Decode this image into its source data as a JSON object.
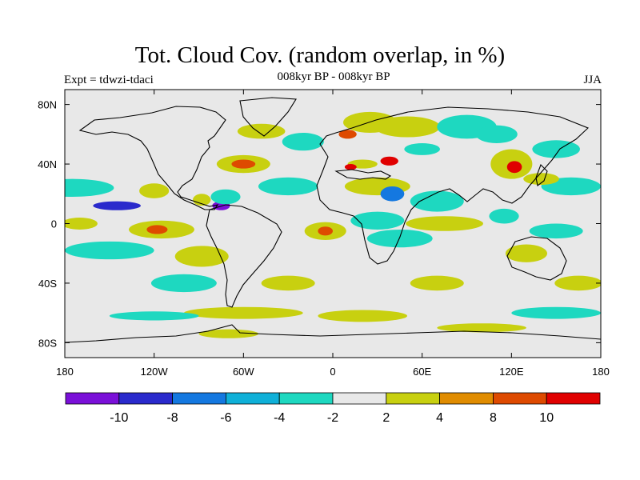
{
  "title": "Tot. Cloud Cov. (random overlap, in %)",
  "experiment_label": "Expt = tdwzi-tdaci",
  "subtitle": "008kyr BP - 008kyr BP",
  "season": "JJA",
  "colors": {
    "background": "#e8e8e8",
    "coastline": "#000000",
    "frame": "#000000"
  },
  "chart_data": {
    "type": "heatmap",
    "map": "global cloud cover anomaly, equirectangular projection",
    "x_axis": {
      "ticks": [
        "180",
        "120W",
        "60W",
        "0",
        "60E",
        "120E",
        "180"
      ],
      "values": [
        -180,
        -120,
        -60,
        0,
        60,
        120,
        180
      ]
    },
    "y_axis": {
      "ticks": [
        "80N",
        "40N",
        "0",
        "40S",
        "80S"
      ],
      "values": [
        80,
        40,
        0,
        -40,
        -80
      ],
      "range": [
        -90,
        90
      ]
    },
    "colorbar": {
      "labels": [
        "-10",
        "-8",
        "-6",
        "-4",
        "-2",
        "2",
        "4",
        "8",
        "10"
      ],
      "colors": [
        "#7a10d8",
        "#2a2acc",
        "#1478e0",
        "#0fb0d8",
        "#1ed8c0",
        "#e8e8e8",
        "#c8d010",
        "#e08c00",
        "#de4a00",
        "#e00000"
      ]
    },
    "features": [
      {
        "lon": -175,
        "lat": 24,
        "rlon": 28,
        "rlat": 6,
        "level": -4
      },
      {
        "lon": -145,
        "lat": 12,
        "rlon": 16,
        "rlat": 3,
        "level": -8
      },
      {
        "lon": -120,
        "lat": 22,
        "rlon": 10,
        "rlat": 5,
        "level": 4
      },
      {
        "lon": -115,
        "lat": -4,
        "rlon": 22,
        "rlat": 6,
        "level": 4
      },
      {
        "lon": -118,
        "lat": -4,
        "rlon": 7,
        "rlat": 3,
        "level": 8
      },
      {
        "lon": -170,
        "lat": 0,
        "rlon": 12,
        "rlat": 4,
        "level": 4
      },
      {
        "lon": -150,
        "lat": -18,
        "rlon": 30,
        "rlat": 6,
        "level": -4
      },
      {
        "lon": -88,
        "lat": -22,
        "rlon": 18,
        "rlat": 7,
        "level": 4
      },
      {
        "lon": -100,
        "lat": -40,
        "rlon": 22,
        "rlat": 6,
        "level": -4
      },
      {
        "lon": -60,
        "lat": -60,
        "rlon": 40,
        "rlat": 4,
        "level": 4
      },
      {
        "lon": -30,
        "lat": -40,
        "rlon": 18,
        "rlat": 5,
        "level": 4
      },
      {
        "lon": -60,
        "lat": 40,
        "rlon": 18,
        "rlat": 6,
        "level": 4
      },
      {
        "lon": -60,
        "lat": 40,
        "rlon": 8,
        "rlat": 3,
        "level": 8
      },
      {
        "lon": -48,
        "lat": 62,
        "rlon": 16,
        "rlat": 5,
        "level": 4
      },
      {
        "lon": -30,
        "lat": 25,
        "rlon": 20,
        "rlat": 6,
        "level": -4
      },
      {
        "lon": -75,
        "lat": 12,
        "rlon": 6,
        "rlat": 3,
        "level": -10
      },
      {
        "lon": -72,
        "lat": 18,
        "rlon": 10,
        "rlat": 5,
        "level": -4
      },
      {
        "lon": -88,
        "lat": 16,
        "rlon": 6,
        "rlat": 4,
        "level": 4
      },
      {
        "lon": -20,
        "lat": 55,
        "rlon": 14,
        "rlat": 6,
        "level": -4
      },
      {
        "lon": 25,
        "lat": 68,
        "rlon": 18,
        "rlat": 7,
        "level": 4
      },
      {
        "lon": 10,
        "lat": 60,
        "rlon": 6,
        "rlat": 3,
        "level": 8
      },
      {
        "lon": 20,
        "lat": 40,
        "rlon": 10,
        "rlat": 3,
        "level": 4
      },
      {
        "lon": 12,
        "lat": 38,
        "rlon": 4,
        "rlat": 2,
        "level": 10
      },
      {
        "lon": 38,
        "lat": 42,
        "rlon": 6,
        "rlat": 3,
        "level": 10
      },
      {
        "lon": 50,
        "lat": 65,
        "rlon": 22,
        "rlat": 7,
        "level": 4
      },
      {
        "lon": 90,
        "lat": 65,
        "rlon": 20,
        "rlat": 8,
        "level": -4
      },
      {
        "lon": 60,
        "lat": 50,
        "rlon": 12,
        "rlat": 4,
        "level": -4
      },
      {
        "lon": 30,
        "lat": 25,
        "rlon": 22,
        "rlat": 6,
        "level": 4
      },
      {
        "lon": 40,
        "lat": 20,
        "rlon": 8,
        "rlat": 5,
        "level": -6
      },
      {
        "lon": 30,
        "lat": 2,
        "rlon": 18,
        "rlat": 6,
        "level": -4
      },
      {
        "lon": 45,
        "lat": -10,
        "rlon": 22,
        "rlat": 6,
        "level": -4
      },
      {
        "lon": -5,
        "lat": -5,
        "rlon": 14,
        "rlat": 6,
        "level": 4
      },
      {
        "lon": -5,
        "lat": -5,
        "rlon": 5,
        "rlat": 3,
        "level": 8
      },
      {
        "lon": 70,
        "lat": 15,
        "rlon": 18,
        "rlat": 7,
        "level": -4
      },
      {
        "lon": 75,
        "lat": 0,
        "rlon": 26,
        "rlat": 5,
        "level": 4
      },
      {
        "lon": 70,
        "lat": -40,
        "rlon": 18,
        "rlat": 5,
        "level": 4
      },
      {
        "lon": 120,
        "lat": 40,
        "rlon": 14,
        "rlat": 10,
        "level": 4
      },
      {
        "lon": 122,
        "lat": 38,
        "rlon": 5,
        "rlat": 4,
        "level": 10
      },
      {
        "lon": 110,
        "lat": 60,
        "rlon": 14,
        "rlat": 6,
        "level": -4
      },
      {
        "lon": 150,
        "lat": 50,
        "rlon": 16,
        "rlat": 6,
        "level": -4
      },
      {
        "lon": 160,
        "lat": 25,
        "rlon": 20,
        "rlat": 6,
        "level": -4
      },
      {
        "lon": 140,
        "lat": 30,
        "rlon": 12,
        "rlat": 4,
        "level": 4
      },
      {
        "lon": 115,
        "lat": 5,
        "rlon": 10,
        "rlat": 5,
        "level": -4
      },
      {
        "lon": 150,
        "lat": -5,
        "rlon": 18,
        "rlat": 5,
        "level": -4
      },
      {
        "lon": 130,
        "lat": -20,
        "rlon": 14,
        "rlat": 6,
        "level": 4
      },
      {
        "lon": 165,
        "lat": -40,
        "rlon": 16,
        "rlat": 5,
        "level": 4
      },
      {
        "lon": 150,
        "lat": -60,
        "rlon": 30,
        "rlat": 4,
        "level": -4
      },
      {
        "lon": 20,
        "lat": -62,
        "rlon": 30,
        "rlat": 4,
        "level": 4
      },
      {
        "lon": -120,
        "lat": -62,
        "rlon": 30,
        "rlat": 3,
        "level": -4
      },
      {
        "lon": -70,
        "lat": -74,
        "rlon": 20,
        "rlat": 3,
        "level": 4
      },
      {
        "lon": 100,
        "lat": -70,
        "rlon": 30,
        "rlat": 3,
        "level": 4
      }
    ]
  }
}
